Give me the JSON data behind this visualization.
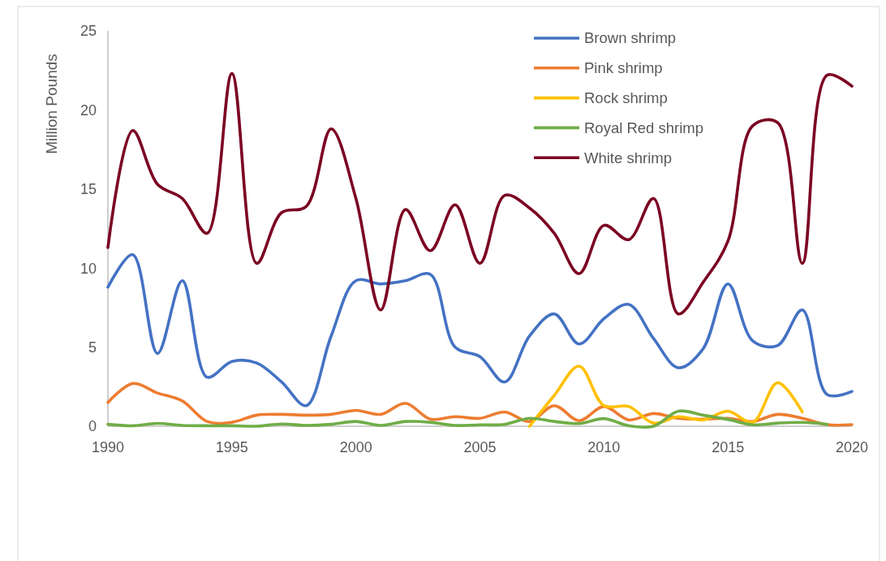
{
  "chart_data": {
    "type": "line",
    "ylabel": "Million Pounds",
    "x": [
      1990,
      1991,
      1992,
      1993,
      1994,
      1995,
      1996,
      1997,
      1998,
      1999,
      2000,
      2001,
      2002,
      2003,
      2004,
      2005,
      2006,
      2007,
      2008,
      2009,
      2010,
      2011,
      2012,
      2013,
      2014,
      2015,
      2016,
      2017,
      2018,
      2019,
      2020
    ],
    "xlim": [
      1990,
      2020
    ],
    "xticks": [
      1990,
      1995,
      2000,
      2005,
      2010,
      2015,
      2020
    ],
    "ylim": [
      0,
      25
    ],
    "yticks": [
      0,
      5,
      10,
      15,
      20,
      25
    ],
    "legend": "top right",
    "series": [
      {
        "name": "Brown shrimp",
        "color": "#4472c4",
        "values": [
          8.8,
          10.85,
          4.6,
          9.2,
          3.1,
          4.1,
          4.0,
          2.8,
          1.3,
          5.7,
          9.2,
          9.0,
          9.2,
          9.6,
          5.0,
          4.4,
          2.8,
          5.7,
          7.1,
          5.2,
          6.8,
          7.7,
          5.55,
          3.7,
          4.9,
          9.0,
          5.4,
          5.1,
          7.35,
          2.0,
          2.2
        ]
      },
      {
        "name": "Pink shrimp",
        "color": "#ed7d31",
        "values": [
          1.5,
          2.7,
          2.1,
          1.6,
          0.3,
          0.25,
          0.7,
          0.75,
          0.7,
          0.75,
          1.0,
          0.75,
          1.45,
          0.45,
          0.6,
          0.5,
          0.9,
          0.3,
          1.3,
          0.35,
          1.25,
          0.4,
          0.8,
          0.5,
          0.45,
          0.5,
          0.3,
          0.75,
          0.5,
          0.1,
          0.1
        ]
      },
      {
        "name": "Rock shrimp",
        "color": "#ffc000",
        "values": [
          null,
          null,
          null,
          null,
          null,
          null,
          null,
          null,
          null,
          null,
          null,
          null,
          null,
          null,
          null,
          null,
          null,
          0.0,
          1.95,
          3.8,
          1.3,
          1.25,
          0.2,
          0.6,
          0.4,
          0.95,
          0.25,
          2.75,
          0.9,
          null,
          null
        ]
      },
      {
        "name": "Royal Red shrimp",
        "color": "#70ad47",
        "values": [
          0.12,
          0.03,
          0.18,
          0.05,
          0.03,
          0.03,
          0.0,
          0.14,
          0.05,
          0.12,
          0.3,
          0.05,
          0.3,
          0.25,
          0.05,
          0.09,
          0.12,
          0.5,
          0.3,
          0.17,
          0.48,
          0.03,
          0.0,
          0.95,
          0.7,
          0.43,
          0.09,
          0.2,
          0.24,
          0.12,
          null
        ]
      },
      {
        "name": "White shrimp",
        "color": "#7b0021",
        "values": [
          11.3,
          18.7,
          15.3,
          14.4,
          12.2,
          22.3,
          10.3,
          13.5,
          13.9,
          18.8,
          14.4,
          7.35,
          13.7,
          11.1,
          14.0,
          10.3,
          14.6,
          13.8,
          12.2,
          9.65,
          12.7,
          11.8,
          14.4,
          7.1,
          9.1,
          11.7,
          19.0,
          19.2,
          10.3,
          22.2,
          21.5
        ]
      }
    ]
  }
}
